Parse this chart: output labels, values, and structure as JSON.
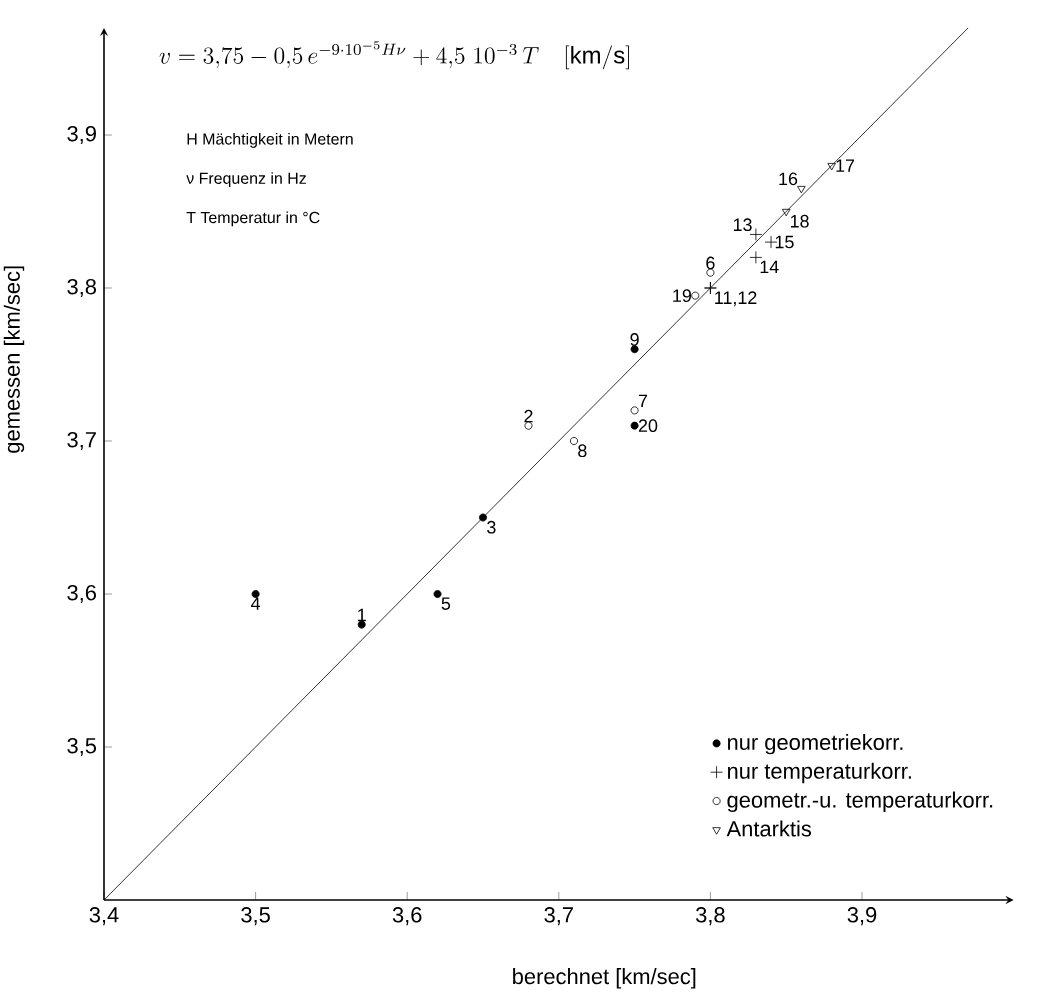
{
  "chart_data": {
    "type": "scatter",
    "xlabel": "berechnet   [km/sec]",
    "ylabel": "gemessen   [km/sec]",
    "xlim": [
      3.4,
      4.0
    ],
    "ylim": [
      3.4,
      3.97
    ],
    "xticks": [
      {
        "value": 3.4,
        "label": "3,4"
      },
      {
        "value": 3.5,
        "label": "3,5"
      },
      {
        "value": 3.6,
        "label": "3,6"
      },
      {
        "value": 3.7,
        "label": "3,7"
      },
      {
        "value": 3.8,
        "label": "3,8"
      },
      {
        "value": 3.9,
        "label": "3,9"
      }
    ],
    "yticks": [
      {
        "value": 3.5,
        "label": "3,5"
      },
      {
        "value": 3.6,
        "label": "3,6"
      },
      {
        "value": 3.7,
        "label": "3,7"
      },
      {
        "value": 3.8,
        "label": "3,8"
      },
      {
        "value": 3.9,
        "label": "3,9"
      }
    ],
    "grid": false,
    "legend": "bottom right",
    "series": [
      {
        "type": "line",
        "color": "#000000",
        "marker": "none",
        "x": [
          3.4,
          3.97
        ],
        "values": [
          3.4,
          3.97
        ]
      },
      {
        "name": "nur geometriekorr.",
        "color": "#000000",
        "marker": "circle",
        "x": [
          3.5,
          3.57,
          3.62,
          3.65,
          3.75,
          3.75
        ],
        "values": [
          3.6,
          3.58,
          3.6,
          3.65,
          3.71,
          3.76
        ]
      },
      {
        "name": "nur temperaturkorr.",
        "color": "#000000",
        "marker": "cross",
        "x": [
          3.8,
          3.8,
          3.83,
          3.83,
          3.84
        ],
        "values": [
          3.8,
          3.8,
          3.835,
          3.82,
          3.83
        ]
      },
      {
        "name": "geometr.-u. temperaturkorr.",
        "color": "#000000",
        "marker": "circle",
        "x": [
          3.68,
          3.71,
          3.75,
          3.79,
          3.8
        ],
        "values": [
          3.71,
          3.7,
          3.72,
          3.795,
          3.81
        ]
      },
      {
        "name": "Antarktis",
        "color": "#000000",
        "marker": "triangle",
        "x": [
          3.85,
          3.86,
          3.88
        ],
        "values": [
          3.85,
          3.865,
          3.88
        ]
      }
    ],
    "annotations": [
      "v = 3{,}75-0{,}5\\,e^{-9\\cdot 10^{-5}H\\nu}+4{,}5\\;10^{-3}\\,T\\quad[\\mathrm{km/s}]",
      "H   Mächtigkeit in Metern",
      "ν   Frequenz in Hz",
      "T   Temperatur in °C",
      {
        "text": "4",
        "x": 3.5,
        "y": 3.6
      },
      {
        "text": "1",
        "x": 3.57,
        "y": 3.58
      },
      {
        "text": "5",
        "x": 3.62,
        "y": 3.6
      },
      {
        "text": "3",
        "x": 3.65,
        "y": 3.65
      },
      {
        "text": "2",
        "x": 3.68,
        "y": 3.71
      },
      {
        "text": "8",
        "x": 3.71,
        "y": 3.7
      },
      {
        "text": "7",
        "x": 3.75,
        "y": 3.72
      },
      {
        "text": "20",
        "x": 3.75,
        "y": 3.71
      },
      {
        "text": "9",
        "x": 3.75,
        "y": 3.76
      },
      {
        "text": "19",
        "x": 3.79,
        "y": 3.795
      },
      {
        "text": "6",
        "x": 3.8,
        "y": 3.81
      },
      {
        "text": "11,12",
        "x": 3.8,
        "y": 3.8
      },
      {
        "text": "13",
        "x": 3.83,
        "y": 3.835
      },
      {
        "text": "14",
        "x": 3.83,
        "y": 3.82
      },
      {
        "text": "15",
        "x": 3.84,
        "y": 3.83
      },
      {
        "text": "18",
        "x": 3.85,
        "y": 3.85
      },
      {
        "text": "16",
        "x": 3.86,
        "y": 3.865
      },
      {
        "text": "17",
        "x": 3.88,
        "y": 3.88
      }
    ]
  }
}
